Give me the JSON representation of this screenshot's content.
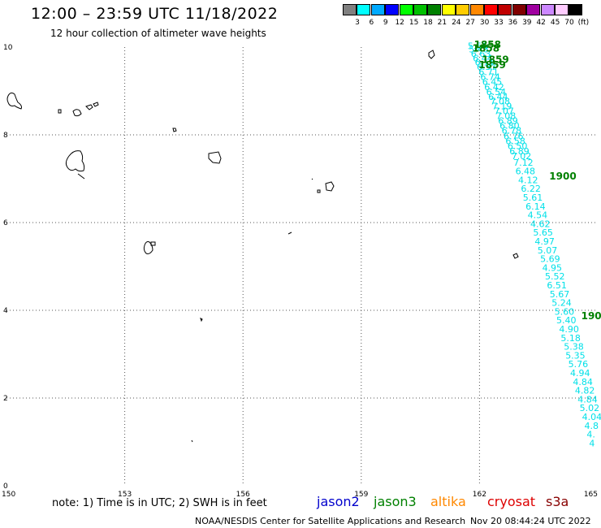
{
  "header": {
    "title": "12:00 – 23:59 UTC 11/18/2022",
    "subtitle": "12 hour collection of altimeter wave heights"
  },
  "color_scale": {
    "colors": [
      "#808080",
      "#00ffff",
      "#00aaff",
      "#0000ff",
      "#00ff00",
      "#00c000",
      "#008000",
      "#ffff00",
      "#ffcc00",
      "#ff8800",
      "#ff0000",
      "#c00000",
      "#800000",
      "#a000a0",
      "#cc88ff",
      "#ffccff",
      "#000000"
    ],
    "labels": [
      "3",
      "6",
      "9",
      "12",
      "15",
      "18",
      "21",
      "24",
      "27",
      "30",
      "33",
      "36",
      "39",
      "42",
      "45",
      "70",
      "(ft)"
    ]
  },
  "axes": {
    "x_ticks": [
      "150",
      "153",
      "156",
      "159",
      "162",
      "165"
    ],
    "y_ticks": [
      "0",
      "2",
      "4",
      "6",
      "8",
      "10"
    ],
    "x_range": [
      150,
      165
    ],
    "y_range": [
      0,
      10
    ]
  },
  "track": {
    "color": "#00e0e8",
    "values": [
      {
        "lon": 161.7,
        "lat": 9.95,
        "v": "5.56"
      },
      {
        "lon": 161.73,
        "lat": 9.88,
        "v": "5.48"
      },
      {
        "lon": 161.78,
        "lat": 9.78,
        "v": "6.63"
      },
      {
        "lon": 161.83,
        "lat": 9.68,
        "v": "6.44"
      },
      {
        "lon": 161.88,
        "lat": 9.58,
        "v": "6.11"
      },
      {
        "lon": 161.93,
        "lat": 9.48,
        "v": "6.37"
      },
      {
        "lon": 161.98,
        "lat": 9.36,
        "v": "6.71"
      },
      {
        "lon": 162.02,
        "lat": 9.25,
        "v": "6.74"
      },
      {
        "lon": 162.07,
        "lat": 9.14,
        "v": "6.45"
      },
      {
        "lon": 162.12,
        "lat": 9.02,
        "v": "6.42"
      },
      {
        "lon": 162.17,
        "lat": 8.91,
        "v": "6.54"
      },
      {
        "lon": 162.22,
        "lat": 8.8,
        "v": "6.44"
      },
      {
        "lon": 162.27,
        "lat": 8.69,
        "v": "7.08"
      },
      {
        "lon": 162.32,
        "lat": 8.58,
        "v": "7.19"
      },
      {
        "lon": 162.37,
        "lat": 8.47,
        "v": "7.07"
      },
      {
        "lon": 162.42,
        "lat": 8.36,
        "v": "7.08"
      },
      {
        "lon": 162.47,
        "lat": 8.25,
        "v": "6.89"
      },
      {
        "lon": 162.51,
        "lat": 8.14,
        "v": "6.80"
      },
      {
        "lon": 162.56,
        "lat": 8.03,
        "v": "6.78"
      },
      {
        "lon": 162.61,
        "lat": 7.9,
        "v": "6.76"
      },
      {
        "lon": 162.66,
        "lat": 7.79,
        "v": "6.58"
      },
      {
        "lon": 162.71,
        "lat": 7.68,
        "v": "6.50"
      },
      {
        "lon": 162.76,
        "lat": 7.56,
        "v": "6.89"
      },
      {
        "lon": 162.81,
        "lat": 7.44,
        "v": "7.02"
      },
      {
        "lon": 162.86,
        "lat": 7.3,
        "v": "7.12"
      },
      {
        "lon": 162.91,
        "lat": 7.1,
        "v": "6.48"
      },
      {
        "lon": 162.98,
        "lat": 6.9,
        "v": "4.12"
      },
      {
        "lon": 163.05,
        "lat": 6.7,
        "v": "6.22"
      },
      {
        "lon": 163.1,
        "lat": 6.5,
        "v": "5.61"
      },
      {
        "lon": 163.17,
        "lat": 6.3,
        "v": "6.14"
      },
      {
        "lon": 163.22,
        "lat": 6.1,
        "v": "4.54"
      },
      {
        "lon": 163.29,
        "lat": 5.9,
        "v": "4.62"
      },
      {
        "lon": 163.36,
        "lat": 5.7,
        "v": "5.65"
      },
      {
        "lon": 163.4,
        "lat": 5.5,
        "v": "4.97"
      },
      {
        "lon": 163.47,
        "lat": 5.3,
        "v": "5.07"
      },
      {
        "lon": 163.54,
        "lat": 5.1,
        "v": "5.69"
      },
      {
        "lon": 163.59,
        "lat": 4.9,
        "v": "4.95"
      },
      {
        "lon": 163.66,
        "lat": 4.7,
        "v": "5.52"
      },
      {
        "lon": 163.71,
        "lat": 4.5,
        "v": "6.51"
      },
      {
        "lon": 163.78,
        "lat": 4.3,
        "v": "5.67"
      },
      {
        "lon": 163.83,
        "lat": 4.1,
        "v": "5.24"
      },
      {
        "lon": 163.9,
        "lat": 3.9,
        "v": "5.60"
      },
      {
        "lon": 163.95,
        "lat": 3.7,
        "v": "5.40"
      },
      {
        "lon": 164.02,
        "lat": 3.5,
        "v": "4.90"
      },
      {
        "lon": 164.06,
        "lat": 3.3,
        "v": "5.18"
      },
      {
        "lon": 164.14,
        "lat": 3.1,
        "v": "5.38"
      },
      {
        "lon": 164.18,
        "lat": 2.9,
        "v": "5.35"
      },
      {
        "lon": 164.25,
        "lat": 2.7,
        "v": "5.76"
      },
      {
        "lon": 164.3,
        "lat": 2.5,
        "v": "4.94"
      },
      {
        "lon": 164.37,
        "lat": 2.3,
        "v": "4.84"
      },
      {
        "lon": 164.42,
        "lat": 2.1,
        "v": "4.82"
      },
      {
        "lon": 164.49,
        "lat": 1.9,
        "v": "4.84"
      },
      {
        "lon": 164.54,
        "lat": 1.7,
        "v": "5.02"
      },
      {
        "lon": 164.6,
        "lat": 1.5,
        "v": "4.04"
      },
      {
        "lon": 164.66,
        "lat": 1.3,
        "v": "4.8"
      },
      {
        "lon": 164.72,
        "lat": 1.1,
        "v": "4."
      },
      {
        "lon": 164.78,
        "lat": 0.9,
        "v": "4"
      }
    ]
  },
  "time_labels": [
    {
      "lon": 161.86,
      "lat": 9.98,
      "t": "1858"
    },
    {
      "lon": 161.82,
      "lat": 9.9,
      "t": "1858"
    },
    {
      "lon": 162.06,
      "lat": 9.64,
      "t": "1859"
    },
    {
      "lon": 161.98,
      "lat": 9.52,
      "t": "1859"
    },
    {
      "lon": 163.77,
      "lat": 6.98,
      "t": "1900"
    },
    {
      "lon": 164.58,
      "lat": 3.8,
      "t": "190"
    }
  ],
  "note": "note: 1) Time is in UTC; 2) SWH is in feet",
  "satellites": [
    {
      "name": "jason2",
      "color": "#0000cc"
    },
    {
      "name": "jason3",
      "color": "#008000"
    },
    {
      "name": "altika",
      "color": "#ff8800"
    },
    {
      "name": "cryosat",
      "color": "#dd0000"
    },
    {
      "name": "s3a",
      "color": "#880000"
    }
  ],
  "footer": {
    "credit": "NOAA/NESDIS Center for Satellite Applications and Research",
    "timestamp": "Nov 20 08:44:24 UTC 2022"
  }
}
